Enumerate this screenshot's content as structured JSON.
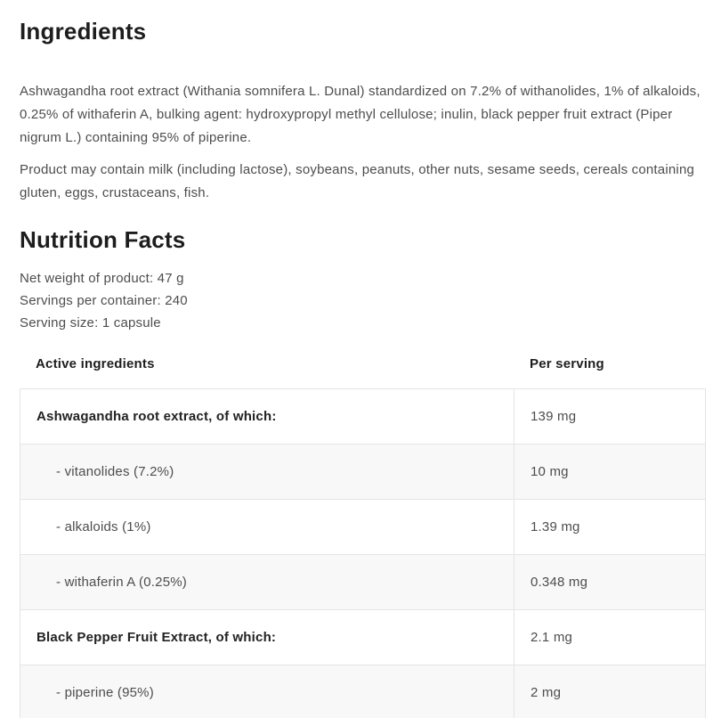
{
  "ingredients": {
    "title": "Ingredients",
    "paragraph1": "Ashwagandha root extract (Withania somnifera L. Dunal) standardized on 7.2% of withanolides, 1% of alkaloids, 0.25% of withaferin A, bulking agent: hydroxypropyl methyl cellulose; inulin, black pepper fruit extract (Piper nigrum L.) containing 95% of piperine.",
    "paragraph2": "Product may contain milk (including lactose), soybeans, peanuts, other nuts, sesame seeds, cereals containing gluten, eggs, crustaceans, fish."
  },
  "nutrition": {
    "title": "Nutrition Facts",
    "net_weight": "Net weight of product: 47 g",
    "servings_per_container": "Servings per container: 240",
    "serving_size": "Serving size: 1 capsule",
    "table": {
      "columns": [
        "Active ingredients",
        "Per serving"
      ],
      "rows": [
        {
          "label": "Ashwagandha root extract, of which:",
          "value": "139 mg",
          "bold": true,
          "indent": false
        },
        {
          "label": "- vitanolides (7.2%)",
          "value": "10 mg",
          "bold": false,
          "indent": true
        },
        {
          "label": "- alkaloids (1%)",
          "value": "1.39 mg",
          "bold": false,
          "indent": true
        },
        {
          "label": "- withaferin A (0.25%)",
          "value": "0.348 mg",
          "bold": false,
          "indent": true
        },
        {
          "label": "Black Pepper Fruit Extract, of which:",
          "value": "2.1 mg",
          "bold": true,
          "indent": false
        },
        {
          "label": "- piperine (95%)",
          "value": "2 mg",
          "bold": false,
          "indent": true
        }
      ]
    }
  },
  "colors": {
    "heading_text": "#1d1d1d",
    "body_text": "#4d4d4d",
    "table_border": "#e4e4e4",
    "stripe_row": "#f8f8f8",
    "background": "#ffffff"
  }
}
